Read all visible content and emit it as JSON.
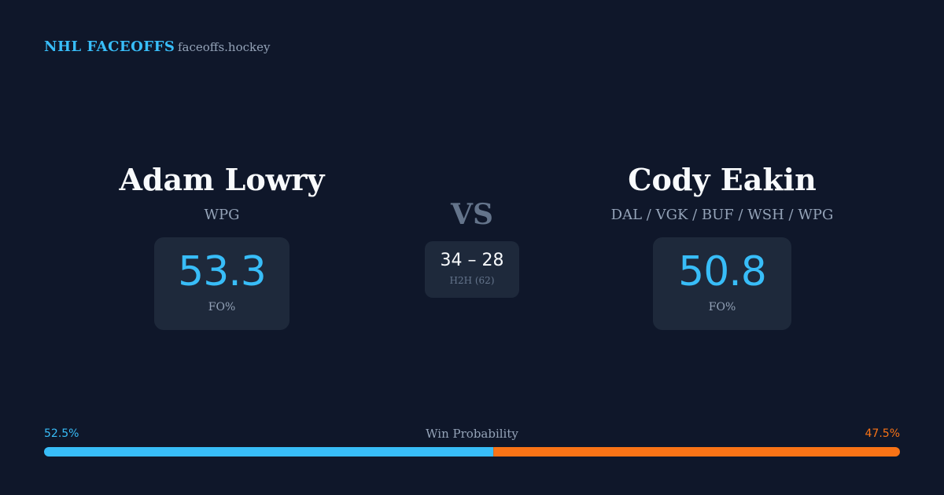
{
  "header": {
    "brand": "NHL FACEOFFS",
    "site": "faceoffs.hockey"
  },
  "players": [
    {
      "name": "Adam Lowry",
      "teams": "WPG",
      "fo_pct": 53.3,
      "fo_label": "FO%"
    },
    {
      "name": "Cody Eakin",
      "teams": "DAL / VGK / BUF / WSH / WPG",
      "fo_pct": 50.8,
      "fo_label": "FO%"
    }
  ],
  "versus": "VS",
  "h2h": {
    "score": "34 – 28",
    "label": "H2H (62)"
  },
  "probability": {
    "title": "Win Probability",
    "values": [
      52.5,
      47.5
    ],
    "value_labels": [
      "52.5%",
      "47.5%"
    ],
    "colors": [
      "#38bdf8",
      "#f97316"
    ]
  }
}
